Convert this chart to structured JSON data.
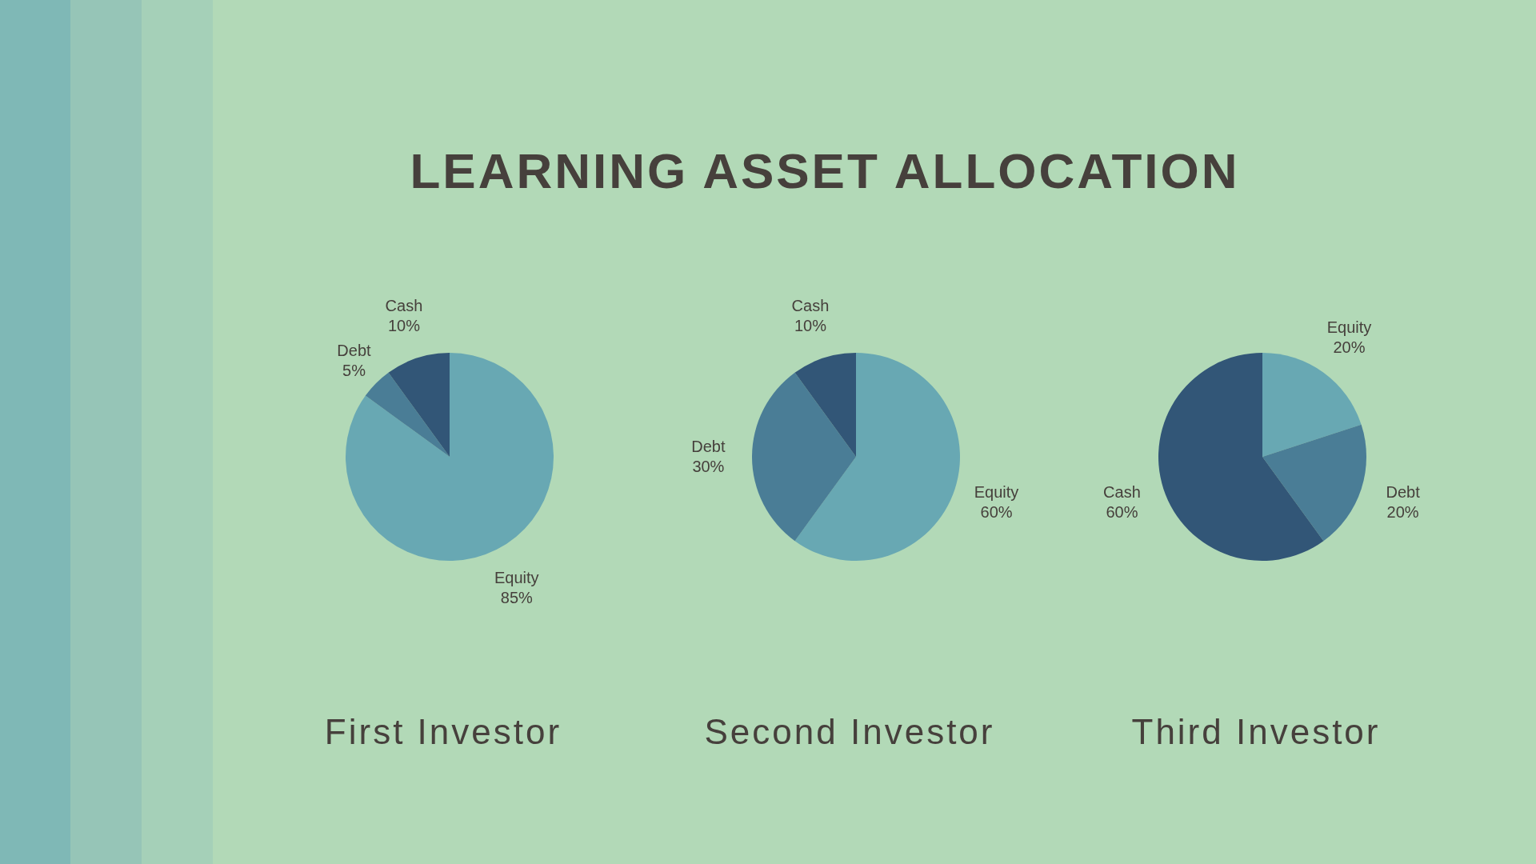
{
  "chart_data": [
    {
      "type": "other",
      "title": "LEARNING ASSET ALLOCATION"
    },
    {
      "type": "pie",
      "title": "First Investor",
      "categories": [
        "Equity",
        "Debt",
        "Cash"
      ],
      "values": [
        85,
        5,
        10
      ],
      "value_labels": [
        "85%",
        "5%",
        "10%"
      ],
      "colors": [
        "#68a8b3",
        "#4a7d96",
        "#325677"
      ]
    },
    {
      "type": "pie",
      "title": "Second Investor",
      "categories": [
        "Equity",
        "Debt",
        "Cash"
      ],
      "values": [
        60,
        30,
        10
      ],
      "value_labels": [
        "60%",
        "30%",
        "10%"
      ],
      "colors": [
        "#68a8b3",
        "#4a7d96",
        "#325677"
      ]
    },
    {
      "type": "pie",
      "title": "Third Investor",
      "categories": [
        "Equity",
        "Debt",
        "Cash"
      ],
      "values": [
        20,
        20,
        60
      ],
      "value_labels": [
        "20%",
        "20%",
        "60%"
      ],
      "colors": [
        "#68a8b3",
        "#4a7d96",
        "#325677"
      ]
    }
  ]
}
